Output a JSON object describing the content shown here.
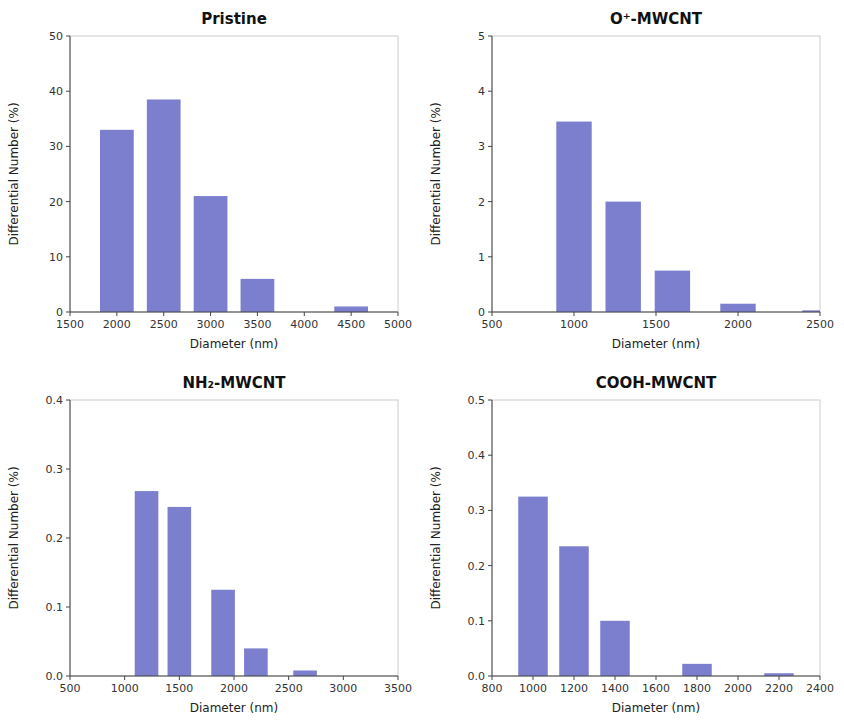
{
  "chart_data": [
    {
      "type": "bar",
      "title": "Pristine",
      "x": [
        2000,
        2500,
        3000,
        3500,
        4500
      ],
      "values": [
        33.0,
        38.5,
        21.0,
        6.0,
        1.0
      ],
      "xlim": [
        1500,
        5000
      ],
      "ylim": [
        0,
        50
      ],
      "xticks": [
        1500,
        2000,
        2500,
        3000,
        3500,
        4000,
        4500,
        5000
      ],
      "yticks": [
        0,
        10,
        20,
        30,
        40,
        50
      ],
      "xlabel": "Diameter (nm)",
      "ylabel": "Differential Number (%)",
      "color": "#7b7fce",
      "grid": false
    },
    {
      "type": "bar",
      "title": "O⁺-MWCNT",
      "x": [
        1000,
        1300,
        1600,
        2000,
        2500
      ],
      "values": [
        3.45,
        2.0,
        0.75,
        0.15,
        0.03
      ],
      "xlim": [
        500,
        2500
      ],
      "ylim": [
        0,
        5
      ],
      "xticks": [
        500,
        1000,
        1500,
        2000,
        2500
      ],
      "yticks": [
        0,
        1,
        2,
        3,
        4,
        5
      ],
      "xlabel": "Diameter (nm)",
      "ylabel": "Differential Number (%)",
      "color": "#7b7fce",
      "grid": false
    },
    {
      "type": "bar",
      "title": "NH₂-MWCNT",
      "x": [
        1200,
        1500,
        1900,
        2200,
        2650
      ],
      "values": [
        0.268,
        0.245,
        0.125,
        0.04,
        0.008
      ],
      "xlim": [
        500,
        3500
      ],
      "ylim": [
        0,
        0.4
      ],
      "xticks": [
        500,
        1000,
        1500,
        2000,
        2500,
        3000,
        3500
      ],
      "yticks": [
        {
          "value": 0,
          "label": "0.0"
        },
        0.1,
        0.2,
        0.3,
        0.4
      ],
      "xlabel": "Diameter (nm)",
      "ylabel": "Differential Number (%)",
      "color": "#7b7fce",
      "grid": false
    },
    {
      "type": "bar",
      "title": "COOH-MWCNT",
      "x": [
        1000,
        1200,
        1400,
        1800,
        2200
      ],
      "values": [
        0.325,
        0.235,
        0.1,
        0.022,
        0.005
      ],
      "xlim": [
        800,
        2400
      ],
      "ylim": [
        0,
        0.5
      ],
      "xticks": [
        800,
        1000,
        1200,
        1400,
        1600,
        1800,
        2000,
        2200,
        2400
      ],
      "yticks": [
        {
          "value": 0,
          "label": "0.0"
        },
        0.1,
        0.2,
        0.3,
        0.4,
        0.5
      ],
      "xlabel": "Diameter (nm)",
      "ylabel": "Differential Number (%)",
      "color": "#7b7fce",
      "grid": false
    }
  ]
}
